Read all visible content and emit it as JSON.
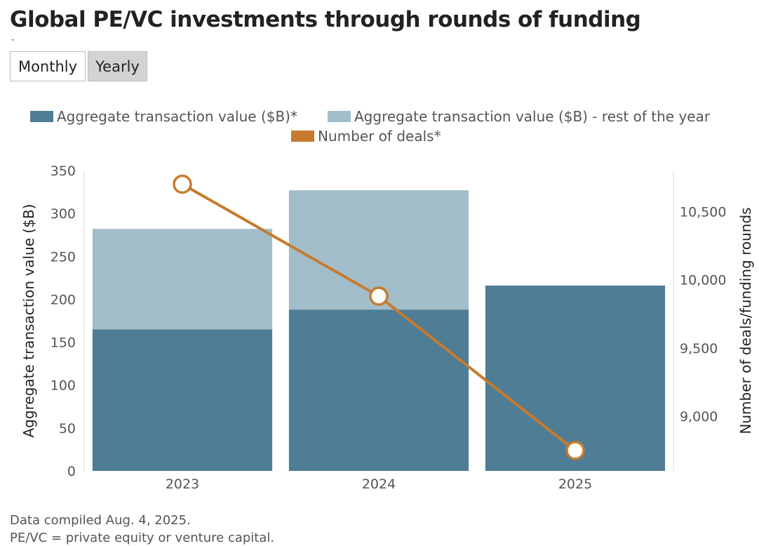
{
  "header": {
    "title": "Global PE/VC investments through rounds of funding",
    "subtitle_mark": "’’"
  },
  "toggle": {
    "options": [
      {
        "label": "Monthly",
        "selected": false
      },
      {
        "label": "Yearly",
        "selected": true
      }
    ]
  },
  "legend": {
    "items": [
      {
        "label": "Aggregate transaction value ($B)*",
        "color": "#4e7d95"
      },
      {
        "label": "Aggregate transaction value ($B) - rest of the year",
        "color": "#a2bdca"
      },
      {
        "label": "Number of deals*",
        "color": "#c67b2e"
      }
    ]
  },
  "chart_data": {
    "type": "bar",
    "categories": [
      "2023",
      "2024",
      "2025"
    ],
    "series": [
      {
        "name": "Aggregate transaction value ($B)*",
        "type": "bar",
        "axis": "left",
        "stack": "value",
        "values": [
          165,
          188,
          216
        ],
        "color": "#4e7d95"
      },
      {
        "name": "Aggregate transaction value ($B) - rest of the year",
        "type": "bar",
        "axis": "left",
        "stack": "value",
        "values": [
          117,
          139,
          null
        ],
        "color": "#a2bdca"
      },
      {
        "name": "Number of deals*",
        "type": "line",
        "axis": "right",
        "values": [
          10700,
          9880,
          8750
        ],
        "color": "#c67b2e"
      }
    ],
    "ylabel": "Aggregate transaction value ($B)",
    "y2label": "Number of deals/funding rounds",
    "ylim": [
      0,
      350
    ],
    "yticks": [
      0,
      50,
      100,
      150,
      200,
      250,
      300,
      350
    ],
    "y2lim": [
      8600,
      10800
    ],
    "y2ticks": [
      9000,
      9500,
      10000,
      10500
    ],
    "y2tick_labels": [
      "9,000",
      "9,500",
      "10,000",
      "10,500"
    ],
    "grid": false,
    "legend_position": "top"
  },
  "footer": {
    "line1": "Data compiled Aug. 4, 2025.",
    "line2": "PE/VC = private equity or venture capital."
  }
}
